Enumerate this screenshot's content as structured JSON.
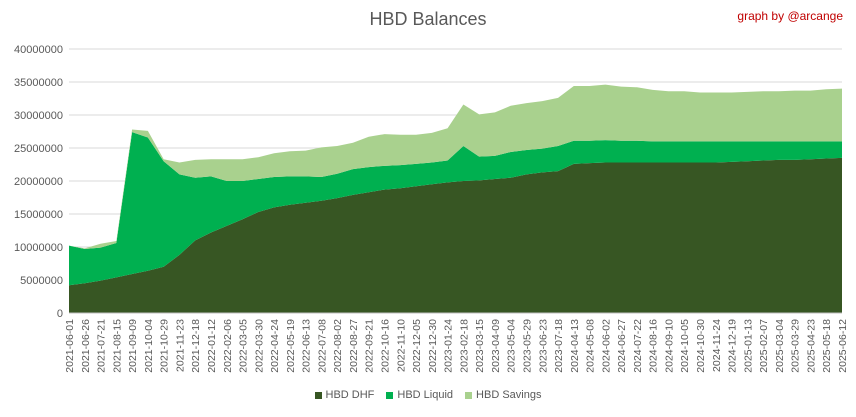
{
  "chart_data": {
    "type": "area",
    "stacked": true,
    "title": "HBD Balances",
    "credit": "graph by @arcange",
    "ylim": [
      0,
      40000000
    ],
    "yticks": [
      0,
      5000000,
      10000000,
      15000000,
      20000000,
      25000000,
      30000000,
      35000000,
      40000000
    ],
    "grid": "horizontal",
    "legend_position": "bottom",
    "categories": [
      "2021-06-01",
      "2021-06-26",
      "2021-07-21",
      "2021-08-15",
      "2021-09-09",
      "2021-10-04",
      "2021-10-29",
      "2021-11-23",
      "2021-12-18",
      "2022-01-12",
      "2022-02-06",
      "2022-03-05",
      "2022-03-30",
      "2022-04-24",
      "2022-05-19",
      "2022-06-13",
      "2022-07-08",
      "2022-08-02",
      "2022-08-27",
      "2022-09-21",
      "2022-10-16",
      "2022-11-10",
      "2022-12-05",
      "2022-12-30",
      "2023-01-24",
      "2023-02-18",
      "2023-03-15",
      "2023-04-09",
      "2023-05-04",
      "2023-05-29",
      "2023-06-23",
      "2023-07-18",
      "2024-04-13",
      "2024-05-08",
      "2024-06-02",
      "2024-06-27",
      "2024-07-22",
      "2024-08-16",
      "2024-09-10",
      "2024-10-05",
      "2024-10-30",
      "2024-11-24",
      "2024-12-19",
      "2025-01-13",
      "2025-02-07",
      "2025-03-04",
      "2025-03-29",
      "2025-04-23",
      "2025-05-18",
      "2025-06-12"
    ],
    "series": [
      {
        "name": "HBD DHF",
        "color": "#375623",
        "values": [
          4200000,
          4500000,
          4900000,
          5400000,
          5900000,
          6400000,
          7000000,
          8800000,
          11000000,
          12200000,
          13200000,
          14200000,
          15300000,
          16000000,
          16400000,
          16700000,
          17000000,
          17400000,
          17900000,
          18300000,
          18700000,
          18900000,
          19200000,
          19500000,
          19800000,
          20000000,
          20100000,
          20300000,
          20500000,
          21000000,
          21300000,
          21500000,
          22600000,
          22700000,
          22800000,
          22800000,
          22800000,
          22800000,
          22800000,
          22800000,
          22800000,
          22800000,
          22900000,
          23000000,
          23100000,
          23200000,
          23200000,
          23300000,
          23400000,
          23500000
        ]
      },
      {
        "name": "HBD Liquid",
        "color": "#00b050",
        "values": [
          6000000,
          5200000,
          5000000,
          5200000,
          21500000,
          20200000,
          16000000,
          12200000,
          9500000,
          8500000,
          6800000,
          5800000,
          5000000,
          4600000,
          4300000,
          4000000,
          3600000,
          3700000,
          3900000,
          3800000,
          3600000,
          3500000,
          3400000,
          3300000,
          3300000,
          5300000,
          3600000,
          3500000,
          3900000,
          3700000,
          3600000,
          3800000,
          3500000,
          3400000,
          3400000,
          3300000,
          3300000,
          3200000,
          3200000,
          3200000,
          3200000,
          3200000,
          3100000,
          3000000,
          2900000,
          2800000,
          2800000,
          2700000,
          2600000,
          2500000
        ]
      },
      {
        "name": "HBD Savings",
        "color": "#a9d18e",
        "values": [
          0,
          100000,
          600000,
          300000,
          400000,
          1000000,
          300000,
          1800000,
          2700000,
          2600000,
          3300000,
          3300000,
          3300000,
          3600000,
          3800000,
          3900000,
          4500000,
          4200000,
          4000000,
          4600000,
          4800000,
          4600000,
          4400000,
          4500000,
          4900000,
          6300000,
          6400000,
          6600000,
          7000000,
          7100000,
          7200000,
          7300000,
          8300000,
          8300000,
          8400000,
          8200000,
          8100000,
          7800000,
          7600000,
          7600000,
          7400000,
          7400000,
          7400000,
          7500000,
          7600000,
          7600000,
          7700000,
          7700000,
          7900000,
          8000000
        ]
      }
    ]
  }
}
